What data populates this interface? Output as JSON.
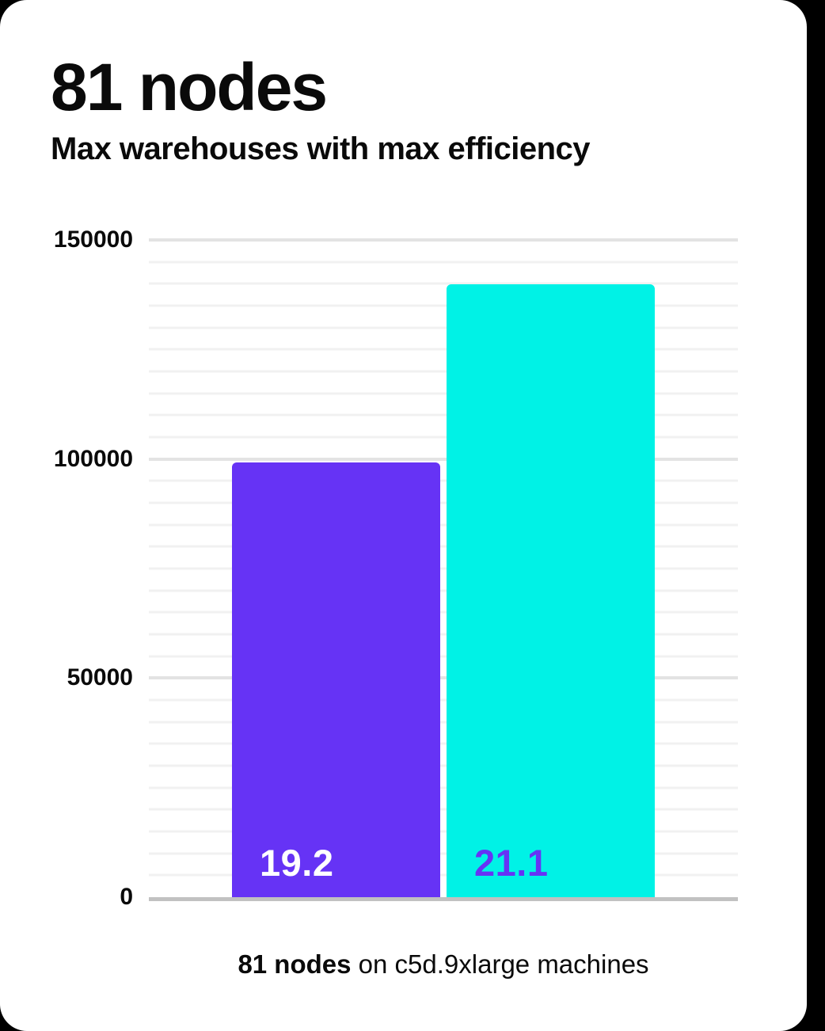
{
  "card": {
    "title": "81 nodes",
    "subtitle": "Max warehouses with max efficiency"
  },
  "chart_data": {
    "type": "bar",
    "title": "81 nodes",
    "subtitle": "Max warehouses with max efficiency",
    "categories": [
      "19.2",
      "21.1"
    ],
    "values": [
      99200,
      139900
    ],
    "bars": [
      {
        "label": "19.2",
        "value": 99200,
        "color": "#6633f5",
        "label_color": "#ffffff"
      },
      {
        "label": "21.1",
        "value": 139900,
        "color": "#00f2e6",
        "label_color": "#6633f5"
      }
    ],
    "ylim": [
      0,
      150000
    ],
    "yticks": [
      {
        "value": 0,
        "label": "0"
      },
      {
        "value": 50000,
        "label": "50000"
      },
      {
        "value": 100000,
        "label": "100000"
      },
      {
        "value": 150000,
        "label": "150000"
      }
    ],
    "minor_gridline_step": 5000,
    "major_gridline_step": 50000,
    "grid": "horizontal-only",
    "legend": "none",
    "xlabel": "",
    "ylabel": "",
    "caption": "81 nodes on c5d.9xlarge machines"
  },
  "caption": {
    "bold": "81 nodes",
    "rest": " on c5d.9xlarge machines"
  },
  "colors": {
    "background": "#000000",
    "card": "#ffffff",
    "bar_purple": "#6633f5",
    "bar_cyan": "#00f2e6",
    "minor_gridline": "#f1f1f1",
    "major_gridline": "#e3e3e3",
    "axis_line": "#c1c1c1",
    "text": "#0a0a0a"
  }
}
